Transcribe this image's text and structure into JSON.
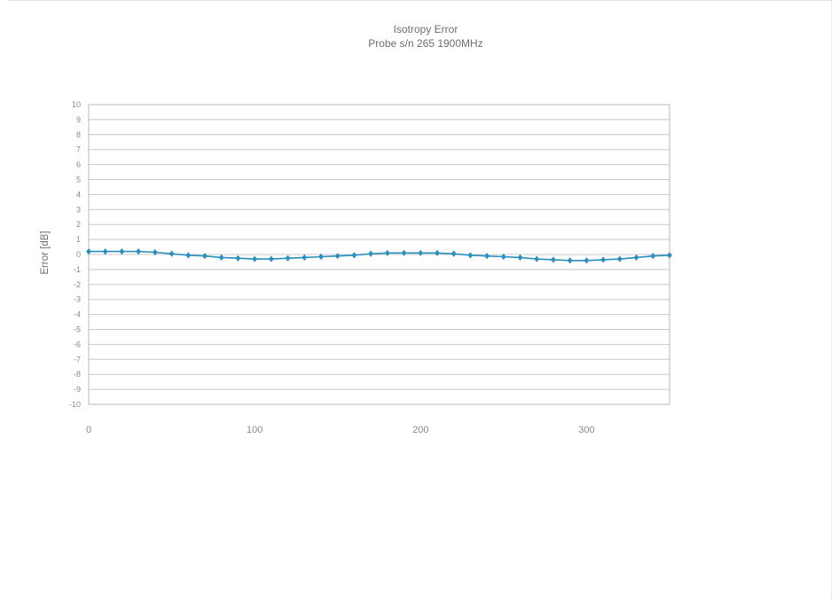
{
  "chart_data": {
    "type": "line",
    "title": "Isotropy Error",
    "subtitle": "Probe s/n 265 1900MHz",
    "xlabel": "",
    "ylabel": "Error [dB]",
    "xlim": [
      0,
      350
    ],
    "ylim": [
      -10,
      10
    ],
    "x_ticks": [
      0,
      100,
      200,
      300
    ],
    "y_ticks": [
      10,
      9,
      8,
      7,
      6,
      5,
      4,
      3,
      2,
      1,
      0,
      -1,
      -2,
      -3,
      -4,
      -5,
      -6,
      -7,
      -8,
      -9,
      -10
    ],
    "grid": true,
    "legend": "none",
    "series": [
      {
        "color": "#2a8fbf",
        "marker": "diamond",
        "x": [
          0,
          10,
          20,
          30,
          40,
          50,
          60,
          70,
          80,
          90,
          100,
          110,
          120,
          130,
          140,
          150,
          160,
          170,
          180,
          190,
          200,
          210,
          220,
          230,
          240,
          250,
          260,
          270,
          280,
          290,
          300,
          310,
          320,
          330,
          340,
          350
        ],
        "y": [
          0.2,
          0.2,
          0.2,
          0.2,
          0.15,
          0.05,
          -0.05,
          -0.1,
          -0.2,
          -0.25,
          -0.3,
          -0.3,
          -0.25,
          -0.2,
          -0.15,
          -0.1,
          -0.05,
          0.05,
          0.1,
          0.1,
          0.1,
          0.1,
          0.05,
          -0.05,
          -0.1,
          -0.15,
          -0.2,
          -0.3,
          -0.35,
          -0.4,
          -0.4,
          -0.35,
          -0.3,
          -0.2,
          -0.1,
          -0.05
        ]
      }
    ]
  }
}
